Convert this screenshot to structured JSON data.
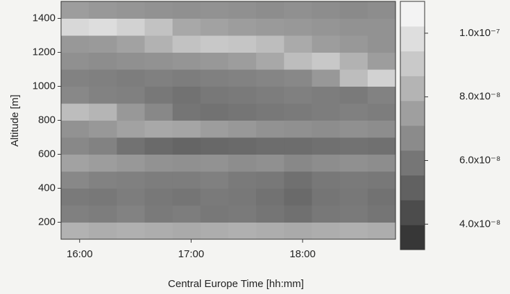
{
  "chart_data": {
    "type": "heatmap",
    "xlabel": "Central Europe Time [hh:mm]",
    "ylabel": "Altitude [m]",
    "x": [
      957.5,
      972.5,
      987.5,
      1002.5,
      1017.5,
      1032.5,
      1047.5,
      1062.5,
      1077.5,
      1092.5,
      1107.5,
      1122.5
    ],
    "y": [
      150,
      250,
      350,
      450,
      550,
      650,
      750,
      850,
      950,
      1050,
      1150,
      1250,
      1350,
      1450
    ],
    "z": [
      [
        8.2e-08,
        8e-08,
        8.1e-08,
        8e-08,
        7.9e-08,
        8e-08,
        8.1e-08,
        8e-08,
        7.9e-08,
        8e-08,
        8.1e-08,
        8e-08
      ],
      [
        6.3e-08,
        6.2e-08,
        6.4e-08,
        6.1e-08,
        6.2e-08,
        6e-08,
        6.1e-08,
        5.9e-08,
        5.7e-08,
        6e-08,
        6.1e-08,
        5.9e-08
      ],
      [
        6.1e-08,
        6e-08,
        6.2e-08,
        6e-08,
        5.9e-08,
        6.1e-08,
        6e-08,
        5.8e-08,
        5.5e-08,
        5.9e-08,
        6e-08,
        5.8e-08
      ],
      [
        6.6e-08,
        6.4e-08,
        6.3e-08,
        6.2e-08,
        6.2e-08,
        6.3e-08,
        6.1e-08,
        6e-08,
        5.7e-08,
        6e-08,
        6.1e-08,
        6e-08
      ],
      [
        7.6e-08,
        7.4e-08,
        7.2e-08,
        7e-08,
        6.9e-08,
        7e-08,
        6.8e-08,
        6.9e-08,
        6.6e-08,
        6.8e-08,
        6.9e-08,
        6.8e-08
      ],
      [
        6.6e-08,
        6.4e-08,
        5.8e-08,
        5.5e-08,
        5.3e-08,
        5.4e-08,
        5.5e-08,
        5.6e-08,
        5.6e-08,
        5.7e-08,
        5.8e-08,
        5.7e-08
      ],
      [
        7e-08,
        7.2e-08,
        7.6e-08,
        7.8e-08,
        7.7e-08,
        7.4e-08,
        7.2e-08,
        7e-08,
        6.9e-08,
        6.8e-08,
        6.9e-08,
        6.8e-08
      ],
      [
        8.6e-08,
        8.3e-08,
        7.2e-08,
        6.6e-08,
        5.9e-08,
        5.8e-08,
        5.9e-08,
        6e-08,
        6.1e-08,
        6.2e-08,
        6.3e-08,
        6.2e-08
      ],
      [
        6.6e-08,
        6.4e-08,
        6.3e-08,
        6e-08,
        5.8e-08,
        6e-08,
        6.1e-08,
        6.2e-08,
        6.3e-08,
        6.2e-08,
        6.1e-08,
        6.4e-08
      ],
      [
        6.4e-08,
        6.3e-08,
        6.2e-08,
        6.3e-08,
        6.2e-08,
        6.3e-08,
        6.4e-08,
        6.5e-08,
        6.6e-08,
        7.2e-08,
        8.6e-08,
        9.4e-08
      ],
      [
        6.9e-08,
        6.8e-08,
        6.9e-08,
        7e-08,
        7.1e-08,
        7.2e-08,
        7.4e-08,
        7.8e-08,
        8.6e-08,
        9e-08,
        8.2e-08,
        7.4e-08
      ],
      [
        7.2e-08,
        7.3e-08,
        7.6e-08,
        8.2e-08,
        8.8e-08,
        9e-08,
        8.9e-08,
        8.6e-08,
        7.9e-08,
        7.4e-08,
        7.2e-08,
        7e-08
      ],
      [
        9.6e-08,
        9.8e-08,
        9.4e-08,
        8.8e-08,
        7.8e-08,
        7.6e-08,
        7.4e-08,
        7.3e-08,
        7.2e-08,
        7.1e-08,
        7e-08,
        7e-08
      ],
      [
        7.4e-08,
        7.2e-08,
        7.1e-08,
        7e-08,
        6.9e-08,
        7e-08,
        6.9e-08,
        6.8e-08,
        6.9e-08,
        6.8e-08,
        6.7e-08,
        6.8e-08
      ]
    ],
    "xlim": [
      950,
      1130
    ],
    "ylim": [
      100,
      1500
    ],
    "zlim": [
      3.2e-08,
      1.1e-07
    ],
    "xticks": [
      {
        "value": 960,
        "label": "16:00"
      },
      {
        "value": 1020,
        "label": "17:00"
      },
      {
        "value": 1080,
        "label": "18:00"
      }
    ],
    "yticks": [
      200,
      400,
      600,
      800,
      1000,
      1200,
      1400
    ],
    "zticks": [
      {
        "value": 4e-08,
        "label": "4.0x10⁻⁸"
      },
      {
        "value": 6e-08,
        "label": "6.0x10⁻⁸"
      },
      {
        "value": 8e-08,
        "label": "8.0x10⁻⁸"
      },
      {
        "value": 1e-07,
        "label": "1.0x10⁻⁷"
      }
    ],
    "colormap": "gray"
  }
}
